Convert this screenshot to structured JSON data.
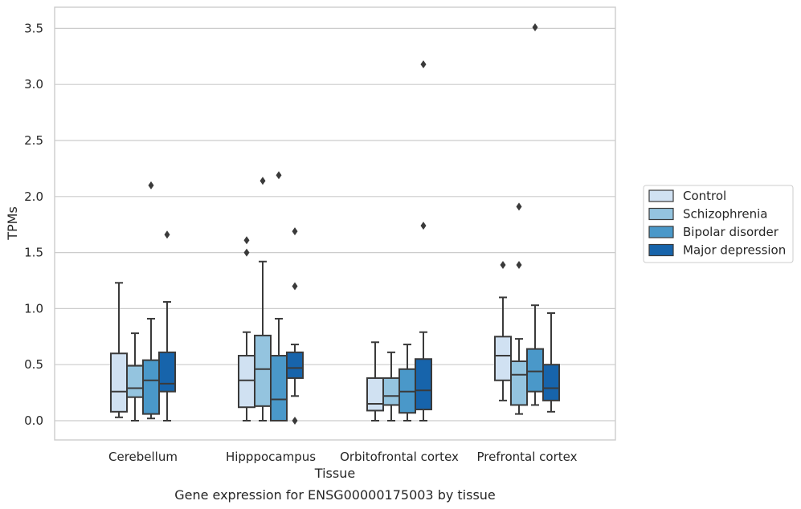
{
  "chart_data": {
    "type": "box",
    "caption": "Gene expression for ENSG00000175003 by tissue",
    "xlabel": "Tissue",
    "ylabel": "TPMs",
    "ylim": [
      -0.17,
      3.68
    ],
    "yticks": [
      0.0,
      0.5,
      1.0,
      1.5,
      2.0,
      2.5,
      3.0,
      3.5
    ],
    "ytick_labels": [
      "0.0",
      "0.5",
      "1.0",
      "1.5",
      "2.0",
      "2.5",
      "3.0",
      "3.5"
    ],
    "grid": "horizontal",
    "legend_position": "right",
    "categories": [
      "Cerebellum",
      "Hipppocampus",
      "Orbitofrontal cortex",
      "Prefrontal cortex"
    ],
    "series": [
      {
        "name": "Control",
        "color": "#d0e1f2",
        "boxes": [
          {
            "whisker_low": 0.03,
            "q1": 0.08,
            "median": 0.26,
            "q3": 0.6,
            "whisker_high": 1.23,
            "outliers": []
          },
          {
            "whisker_low": 0.0,
            "q1": 0.12,
            "median": 0.36,
            "q3": 0.58,
            "whisker_high": 0.79,
            "outliers": [
              1.5,
              1.61
            ]
          },
          {
            "whisker_low": 0.0,
            "q1": 0.09,
            "median": 0.15,
            "q3": 0.38,
            "whisker_high": 0.7,
            "outliers": []
          },
          {
            "whisker_low": 0.18,
            "q1": 0.36,
            "median": 0.58,
            "q3": 0.75,
            "whisker_high": 1.1,
            "outliers": [
              1.39
            ]
          }
        ]
      },
      {
        "name": "Schizophrenia",
        "color": "#94c4df",
        "boxes": [
          {
            "whisker_low": 0.0,
            "q1": 0.21,
            "median": 0.29,
            "q3": 0.49,
            "whisker_high": 0.78,
            "outliers": []
          },
          {
            "whisker_low": 0.0,
            "q1": 0.13,
            "median": 0.46,
            "q3": 0.76,
            "whisker_high": 1.42,
            "outliers": [
              2.14
            ]
          },
          {
            "whisker_low": 0.0,
            "q1": 0.14,
            "median": 0.22,
            "q3": 0.38,
            "whisker_high": 0.61,
            "outliers": []
          },
          {
            "whisker_low": 0.06,
            "q1": 0.14,
            "median": 0.41,
            "q3": 0.53,
            "whisker_high": 0.73,
            "outliers": [
              1.39,
              1.91
            ]
          }
        ]
      },
      {
        "name": "Bipolar disorder",
        "color": "#4a98c9",
        "boxes": [
          {
            "whisker_low": 0.02,
            "q1": 0.06,
            "median": 0.36,
            "q3": 0.54,
            "whisker_high": 0.91,
            "outliers": [
              2.1
            ]
          },
          {
            "whisker_low": 0.0,
            "q1": 0.0,
            "median": 0.19,
            "q3": 0.58,
            "whisker_high": 0.91,
            "outliers": [
              2.19
            ]
          },
          {
            "whisker_low": 0.0,
            "q1": 0.07,
            "median": 0.26,
            "q3": 0.46,
            "whisker_high": 0.68,
            "outliers": []
          },
          {
            "whisker_low": 0.14,
            "q1": 0.26,
            "median": 0.44,
            "q3": 0.64,
            "whisker_high": 1.03,
            "outliers": [
              3.51
            ]
          }
        ]
      },
      {
        "name": "Major depression",
        "color": "#1764ab",
        "boxes": [
          {
            "whisker_low": 0.0,
            "q1": 0.26,
            "median": 0.33,
            "q3": 0.61,
            "whisker_high": 1.06,
            "outliers": [
              1.66
            ]
          },
          {
            "whisker_low": 0.22,
            "q1": 0.38,
            "median": 0.47,
            "q3": 0.61,
            "whisker_high": 0.68,
            "outliers": [
              0.0,
              1.2,
              1.69
            ]
          },
          {
            "whisker_low": 0.0,
            "q1": 0.1,
            "median": 0.27,
            "q3": 0.55,
            "whisker_high": 0.79,
            "outliers": [
              1.74,
              3.18
            ]
          },
          {
            "whisker_low": 0.08,
            "q1": 0.18,
            "median": 0.29,
            "q3": 0.5,
            "whisker_high": 0.96,
            "outliers": []
          }
        ]
      }
    ]
  }
}
